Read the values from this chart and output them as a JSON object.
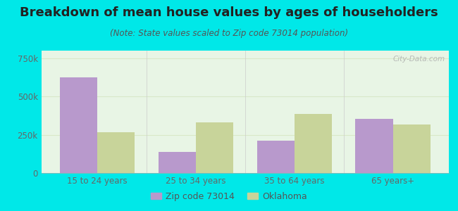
{
  "title": "Breakdown of mean house values by ages of householders",
  "subtitle": "(Note: State values scaled to Zip code 73014 population)",
  "categories": [
    "15 to 24 years",
    "25 to 34 years",
    "35 to 64 years",
    "65 years+"
  ],
  "zip_values": [
    625000,
    140000,
    210000,
    355000
  ],
  "state_values": [
    265000,
    330000,
    385000,
    315000
  ],
  "zip_color": "#b899cc",
  "state_color": "#c8d49a",
  "background_color": "#00e8e8",
  "plot_bg": "#e8f5e8",
  "ylim": [
    0,
    800000
  ],
  "yticks": [
    0,
    250000,
    500000,
    750000
  ],
  "ytick_labels": [
    "0",
    "250k",
    "500k",
    "750k"
  ],
  "legend_zip_label": "Zip code 73014",
  "legend_state_label": "Oklahoma",
  "bar_width": 0.38,
  "title_fontsize": 13,
  "subtitle_fontsize": 8.5,
  "tick_fontsize": 8.5,
  "legend_fontsize": 9,
  "grid_color": "#d8e8c8",
  "tick_color": "#666666"
}
